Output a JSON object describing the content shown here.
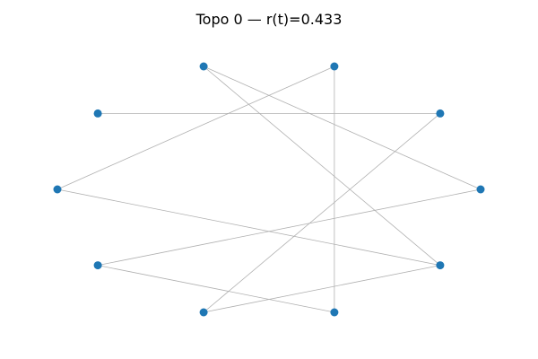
{
  "figure": {
    "title": "Topo 0 — r(t)=0.433"
  },
  "graph": {
    "node_count": 10,
    "layout": "circular",
    "node_color": "#1f77b4",
    "edge_color": "#b0b0b0",
    "edges": [
      [
        0,
        3
      ],
      [
        0,
        6
      ],
      [
        1,
        4
      ],
      [
        1,
        7
      ],
      [
        2,
        5
      ],
      [
        2,
        8
      ],
      [
        3,
        9
      ],
      [
        6,
        8
      ],
      [
        7,
        9
      ],
      [
        9,
        5
      ]
    ]
  }
}
